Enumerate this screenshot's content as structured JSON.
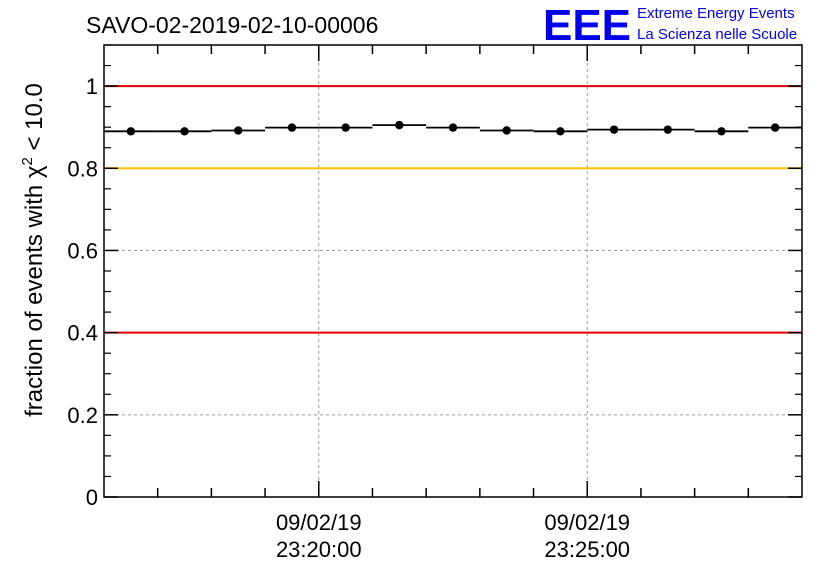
{
  "chart_data": {
    "type": "scatter",
    "title": "SAVO-02-2019-02-10-00006",
    "ylabel_prefix": "fraction of events with ",
    "ylabel_chi": "χ",
    "ylabel_sup": "2",
    "ylabel_suffix": " < 10.0",
    "xlabel": "",
    "ylim": [
      0,
      1.1
    ],
    "xlim": [
      0,
      13
    ],
    "yticks": [
      {
        "value": 0,
        "label": "0"
      },
      {
        "value": 0.2,
        "label": "0.2"
      },
      {
        "value": 0.4,
        "label": "0.4"
      },
      {
        "value": 0.6,
        "label": "0.6"
      },
      {
        "value": 0.8,
        "label": "0.8"
      },
      {
        "value": 1,
        "label": "1"
      }
    ],
    "xticks": [
      {
        "value": 4,
        "date": "09/02/19",
        "time": "23:20:00"
      },
      {
        "value": 9,
        "date": "09/02/19",
        "time": "23:25:00"
      }
    ],
    "grid": true,
    "reference_lines": [
      {
        "value": 1.0,
        "color": "#dd0000",
        "name": "ref-line-1"
      },
      {
        "value": 0.8,
        "color": "#ffc000",
        "name": "ref-line-08"
      },
      {
        "value": 0.4,
        "color": "#dd0000",
        "name": "ref-line-04"
      }
    ],
    "series": [
      {
        "name": "fraction",
        "x": [
          0.5,
          1.5,
          2.5,
          3.5,
          4.5,
          5.5,
          6.5,
          7.5,
          8.5,
          9.5,
          10.5,
          11.5,
          12.5
        ],
        "values": [
          0.89,
          0.89,
          0.892,
          0.899,
          0.899,
          0.905,
          0.899,
          0.892,
          0.89,
          0.894,
          0.894,
          0.89,
          0.899
        ]
      }
    ]
  },
  "logo": {
    "letters": "EEE",
    "line1": "Extreme Energy Events",
    "line2": "La Scienza nelle Scuole",
    "color": "#0000ee"
  }
}
